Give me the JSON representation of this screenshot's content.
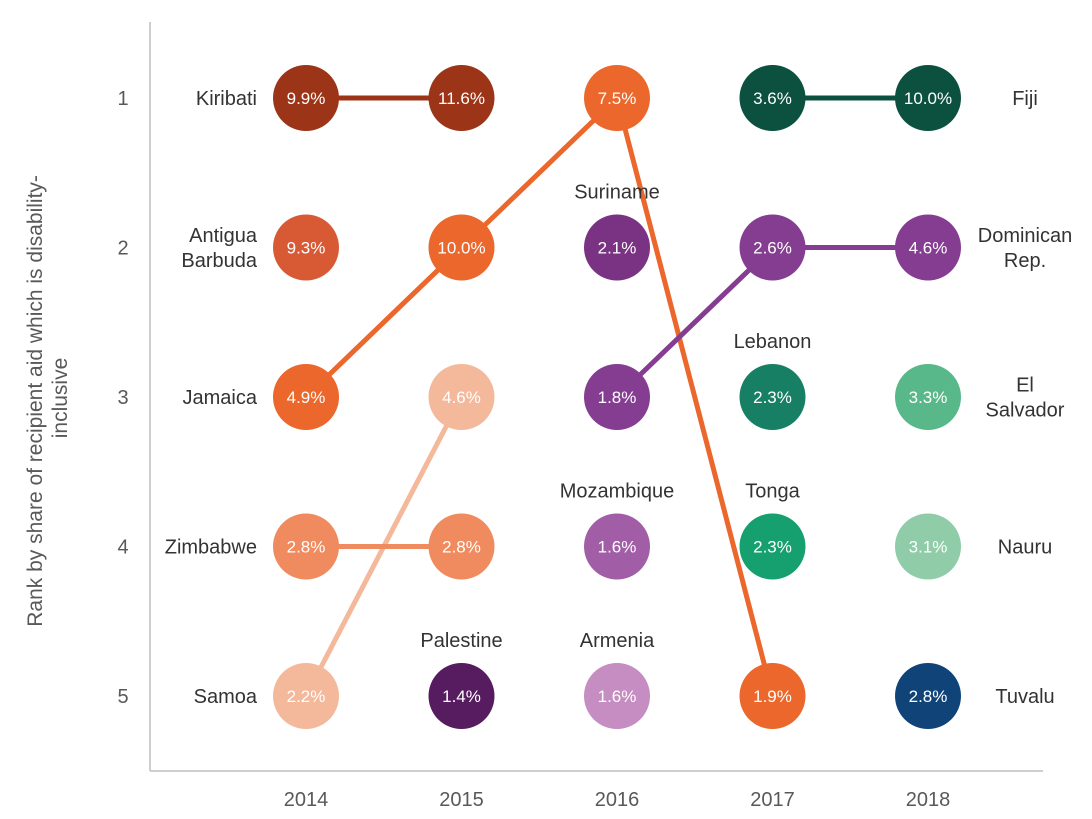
{
  "chart_data": {
    "type": "scatter",
    "ylabel": "Rank by share of recipient aid which is disability-inclusive",
    "ylabel_lines": [
      "Rank by share of recipient aid which is disability-",
      "inclusive"
    ],
    "x": [
      "2014",
      "2015",
      "2016",
      "2017",
      "2018"
    ],
    "ranks": [
      1,
      2,
      3,
      4,
      5
    ],
    "points": [
      {
        "year": "2014",
        "rank": 1,
        "value": 9.9,
        "label": "9.9%",
        "country": "Kiribati",
        "color": "#9C3517"
      },
      {
        "year": "2014",
        "rank": 2,
        "value": 9.3,
        "label": "9.3%",
        "country": "Antigua Barbuda",
        "color": "#D85A35"
      },
      {
        "year": "2014",
        "rank": 3,
        "value": 4.9,
        "label": "4.9%",
        "country": "Jamaica",
        "color": "#EB672C"
      },
      {
        "year": "2014",
        "rank": 4,
        "value": 2.8,
        "label": "2.8%",
        "country": "Zimbabwe",
        "color": "#F08B5F"
      },
      {
        "year": "2014",
        "rank": 5,
        "value": 2.2,
        "label": "2.2%",
        "country": "Samoa",
        "color": "#F4B99B"
      },
      {
        "year": "2015",
        "rank": 1,
        "value": 11.6,
        "label": "11.6%",
        "country": "Kiribati",
        "color": "#9C3517"
      },
      {
        "year": "2015",
        "rank": 2,
        "value": 10.0,
        "label": "10.0%",
        "country": "Jamaica",
        "color": "#EB672C"
      },
      {
        "year": "2015",
        "rank": 3,
        "value": 4.6,
        "label": "4.6%",
        "country": "Samoa",
        "color": "#F4B99B"
      },
      {
        "year": "2015",
        "rank": 4,
        "value": 2.8,
        "label": "2.8%",
        "country": "Zimbabwe",
        "color": "#F08B5F"
      },
      {
        "year": "2015",
        "rank": 5,
        "value": 1.4,
        "label": "1.4%",
        "country": "Palestine",
        "color": "#561C5F"
      },
      {
        "year": "2016",
        "rank": 1,
        "value": 7.5,
        "label": "7.5%",
        "country": "Jamaica",
        "color": "#EB672C"
      },
      {
        "year": "2016",
        "rank": 2,
        "value": 2.1,
        "label": "2.1%",
        "country": "Suriname",
        "color": "#7A3283"
      },
      {
        "year": "2016",
        "rank": 3,
        "value": 1.8,
        "label": "1.8%",
        "country": "Dominican Rep.",
        "color": "#853D91"
      },
      {
        "year": "2016",
        "rank": 4,
        "value": 1.6,
        "label": "1.6%",
        "country": "Mozambique",
        "color": "#A15EA7"
      },
      {
        "year": "2016",
        "rank": 5,
        "value": 1.6,
        "label": "1.6%",
        "country": "Armenia",
        "color": "#C58DC1"
      },
      {
        "year": "2017",
        "rank": 1,
        "value": 3.6,
        "label": "3.6%",
        "country": "Fiji",
        "color": "#0C5140"
      },
      {
        "year": "2017",
        "rank": 2,
        "value": 2.6,
        "label": "2.6%",
        "country": "Dominican Rep.",
        "color": "#853D91"
      },
      {
        "year": "2017",
        "rank": 3,
        "value": 2.3,
        "label": "2.3%",
        "country": "Lebanon",
        "color": "#178064"
      },
      {
        "year": "2017",
        "rank": 4,
        "value": 2.3,
        "label": "2.3%",
        "country": "Tonga",
        "color": "#16A06F"
      },
      {
        "year": "2017",
        "rank": 5,
        "value": 1.9,
        "label": "1.9%",
        "country": "Jamaica",
        "color": "#EB672C"
      },
      {
        "year": "2018",
        "rank": 1,
        "value": 10.0,
        "label": "10.0%",
        "country": "Fiji",
        "color": "#0C5140"
      },
      {
        "year": "2018",
        "rank": 2,
        "value": 4.6,
        "label": "4.6%",
        "country": "Dominican Rep.",
        "color": "#853D91"
      },
      {
        "year": "2018",
        "rank": 3,
        "value": 3.3,
        "label": "3.3%",
        "country": "El Salvador",
        "color": "#58B889"
      },
      {
        "year": "2018",
        "rank": 4,
        "value": 3.1,
        "label": "3.1%",
        "country": "Nauru",
        "color": "#90CCA8"
      },
      {
        "year": "2018",
        "rank": 5,
        "value": 2.8,
        "label": "2.8%",
        "country": "Tuvalu",
        "color": "#104479"
      }
    ],
    "connectors": [
      {
        "country": "Kiribati",
        "color": "#9C3517",
        "path": [
          {
            "year": "2014",
            "rank": 1
          },
          {
            "year": "2015",
            "rank": 1
          }
        ]
      },
      {
        "country": "Jamaica",
        "color": "#EB672C",
        "path": [
          {
            "year": "2014",
            "rank": 3
          },
          {
            "year": "2015",
            "rank": 2
          },
          {
            "year": "2016",
            "rank": 1
          },
          {
            "year": "2017",
            "rank": 5
          }
        ]
      },
      {
        "country": "Samoa",
        "color": "#F4B99B",
        "path": [
          {
            "year": "2014",
            "rank": 5
          },
          {
            "year": "2015",
            "rank": 3
          }
        ]
      },
      {
        "country": "Zimbabwe",
        "color": "#F08B5F",
        "path": [
          {
            "year": "2014",
            "rank": 4
          },
          {
            "year": "2015",
            "rank": 4
          }
        ]
      },
      {
        "country": "Dominican Rep.",
        "color": "#853D91",
        "path": [
          {
            "year": "2016",
            "rank": 3
          },
          {
            "year": "2017",
            "rank": 2
          },
          {
            "year": "2018",
            "rank": 2
          }
        ]
      },
      {
        "country": "Fiji",
        "color": "#0C5140",
        "path": [
          {
            "year": "2017",
            "rank": 1
          },
          {
            "year": "2018",
            "rank": 1
          }
        ]
      }
    ],
    "country_labels": [
      {
        "lines": [
          "Kiribati"
        ],
        "side": "left",
        "year": "2014",
        "rank": 1
      },
      {
        "lines": [
          "Antigua",
          "Barbuda"
        ],
        "side": "left",
        "year": "2014",
        "rank": 2
      },
      {
        "lines": [
          "Jamaica"
        ],
        "side": "left",
        "year": "2014",
        "rank": 3
      },
      {
        "lines": [
          "Zimbabwe"
        ],
        "side": "left",
        "year": "2014",
        "rank": 4
      },
      {
        "lines": [
          "Samoa"
        ],
        "side": "left",
        "year": "2014",
        "rank": 5
      },
      {
        "lines": [
          "Palestine"
        ],
        "side": "above",
        "year": "2015",
        "rank": 5
      },
      {
        "lines": [
          "Suriname"
        ],
        "side": "above",
        "year": "2016",
        "rank": 2
      },
      {
        "lines": [
          "Mozambique"
        ],
        "side": "above",
        "year": "2016",
        "rank": 4
      },
      {
        "lines": [
          "Armenia"
        ],
        "side": "above",
        "year": "2016",
        "rank": 5
      },
      {
        "lines": [
          "Lebanon"
        ],
        "side": "above",
        "year": "2017",
        "rank": 3
      },
      {
        "lines": [
          "Tonga"
        ],
        "side": "above",
        "year": "2017",
        "rank": 4
      },
      {
        "lines": [
          "Fiji"
        ],
        "side": "right",
        "year": "2018",
        "rank": 1
      },
      {
        "lines": [
          "Dominican",
          "Rep."
        ],
        "side": "right",
        "year": "2018",
        "rank": 2
      },
      {
        "lines": [
          "El",
          "Salvador"
        ],
        "side": "right",
        "year": "2018",
        "rank": 3
      },
      {
        "lines": [
          "Nauru"
        ],
        "side": "right",
        "year": "2018",
        "rank": 4
      },
      {
        "lines": [
          "Tuvalu"
        ],
        "side": "right",
        "year": "2018",
        "rank": 5
      }
    ],
    "grid": false,
    "legend": "none"
  }
}
